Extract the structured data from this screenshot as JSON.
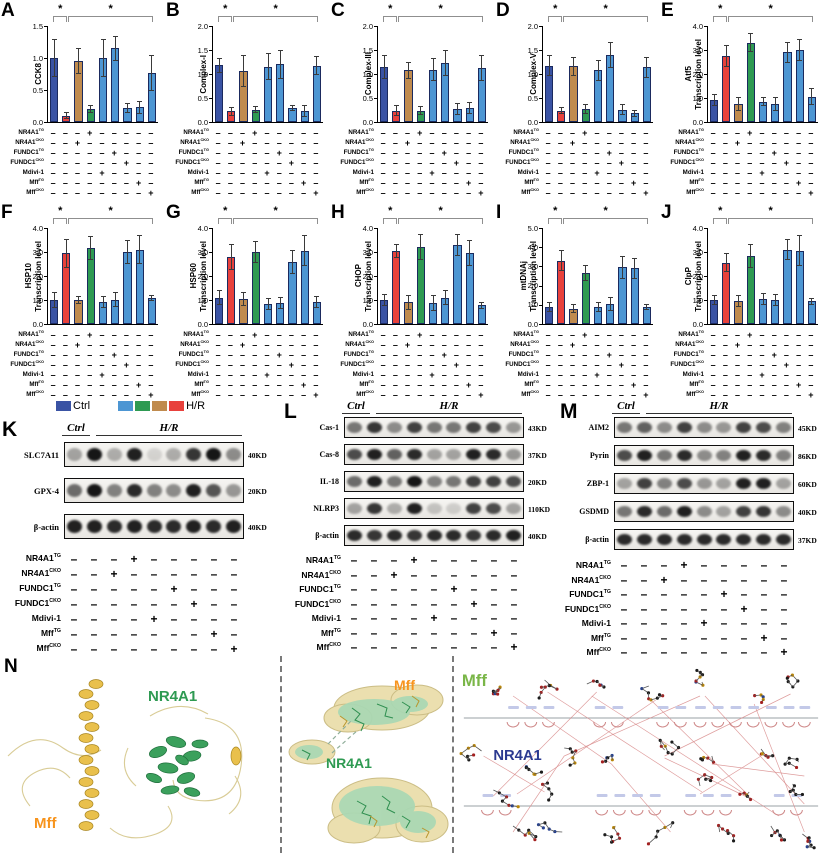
{
  "palette": {
    "ctrl": "#3A53A4",
    "hr": "#E8413C",
    "tan": "#C08B4E",
    "green": "#2E9A52",
    "blue": "#4D96D3",
    "bar_order": [
      "ctrl",
      "hr",
      "tan",
      "green",
      "blue",
      "blue",
      "blue",
      "blue",
      "blue"
    ],
    "legend_hr_order": [
      "blue",
      "green",
      "tan",
      "hr"
    ],
    "axis": "#000000",
    "bracket": "#8f8f8f"
  },
  "legend": {
    "ctrl_label": "Ctrl",
    "hr_label": "H/R"
  },
  "blot_headers": {
    "ctrl": "Ctrl",
    "hr": "H/R"
  },
  "conditions": [
    {
      "base": "NR4A1",
      "sup": "TG",
      "marks": [
        "-",
        "-",
        "-",
        "+",
        "-",
        "-",
        "-",
        "-",
        "-"
      ]
    },
    {
      "base": "NR4A1",
      "sup": "CKO",
      "marks": [
        "-",
        "-",
        "+",
        "-",
        "-",
        "-",
        "-",
        "-",
        "-"
      ]
    },
    {
      "base": "FUNDC1",
      "sup": "TG",
      "marks": [
        "-",
        "-",
        "-",
        "-",
        "-",
        "+",
        "-",
        "-",
        "-"
      ]
    },
    {
      "base": "FUNDC1",
      "sup": "CKO",
      "marks": [
        "-",
        "-",
        "-",
        "-",
        "-",
        "-",
        "+",
        "-",
        "-"
      ]
    },
    {
      "base": "Mdivi-1",
      "sup": "",
      "marks": [
        "-",
        "-",
        "-",
        "-",
        "+",
        "-",
        "-",
        "-",
        "-"
      ]
    },
    {
      "base": "Mff",
      "sup": "TG",
      "marks": [
        "-",
        "-",
        "-",
        "-",
        "-",
        "-",
        "-",
        "+",
        "-"
      ]
    },
    {
      "base": "Mff",
      "sup": "CKO",
      "marks": [
        "-",
        "-",
        "-",
        "-",
        "-",
        "-",
        "-",
        "-",
        "+"
      ]
    }
  ],
  "chart_data": [
    {
      "type": "bar",
      "id": "A",
      "ylabel": "CCK8",
      "ylabel2": "",
      "ymax": 1.5,
      "ystep": 0.5,
      "ylim": [
        0,
        1.5
      ],
      "values": [
        1.0,
        0.1,
        0.95,
        0.2,
        1.0,
        1.15,
        0.22,
        0.23,
        0.77
      ],
      "errors": [
        0.3,
        0.05,
        0.2,
        0.06,
        0.3,
        0.2,
        0.08,
        0.1,
        0.28
      ],
      "sig": [
        "*",
        "*"
      ]
    },
    {
      "type": "bar",
      "id": "B",
      "ylabel": "Complex-I",
      "ylabel2": "",
      "ymax": 2.0,
      "ystep": 0.5,
      "ylim": [
        0,
        2.0
      ],
      "values": [
        1.18,
        0.22,
        1.07,
        0.26,
        1.15,
        1.2,
        0.29,
        0.23,
        1.17
      ],
      "errors": [
        0.15,
        0.1,
        0.33,
        0.08,
        0.28,
        0.3,
        0.07,
        0.12,
        0.2
      ],
      "sig": [
        "*",
        "*"
      ]
    },
    {
      "type": "bar",
      "id": "C",
      "ylabel": "Complex-III",
      "ylabel2": "",
      "ymax": 2.0,
      "ystep": 0.5,
      "ylim": [
        0,
        2.0
      ],
      "values": [
        1.14,
        0.24,
        1.08,
        0.24,
        1.09,
        1.23,
        0.27,
        0.29,
        1.13
      ],
      "errors": [
        0.25,
        0.12,
        0.18,
        0.1,
        0.24,
        0.27,
        0.12,
        0.12,
        0.27
      ],
      "sig": [
        "*",
        "*"
      ]
    },
    {
      "type": "bar",
      "id": "D",
      "ylabel": "Complex-V",
      "ylabel2": "",
      "ymax": 2.0,
      "ystep": 0.5,
      "ylim": [
        0,
        2.0
      ],
      "values": [
        1.17,
        0.24,
        1.16,
        0.27,
        1.08,
        1.39,
        0.26,
        0.18,
        1.14
      ],
      "errors": [
        0.22,
        0.08,
        0.2,
        0.1,
        0.22,
        0.27,
        0.12,
        0.08,
        0.22
      ],
      "sig": [
        "*",
        "*"
      ]
    },
    {
      "type": "bar",
      "id": "E",
      "ylabel": "Atf5",
      "ylabel2": "Transcription level",
      "ymax": 4.0,
      "ystep": 1.0,
      "ylim": [
        0,
        4.0
      ],
      "values": [
        0.9,
        2.75,
        0.75,
        3.3,
        0.85,
        0.75,
        2.9,
        3.0,
        1.05
      ],
      "errors": [
        0.25,
        0.45,
        0.3,
        0.4,
        0.2,
        0.3,
        0.45,
        0.45,
        0.35
      ],
      "sig": [
        "*",
        "*"
      ]
    },
    {
      "type": "bar",
      "id": "F",
      "ylabel": "HSP10",
      "ylabel2": "Transcription level",
      "ymax": 4.0,
      "ystep": 1.0,
      "ylim": [
        0,
        4.0
      ],
      "values": [
        1.0,
        2.95,
        1.0,
        3.15,
        0.92,
        1.02,
        3.0,
        3.1,
        1.1
      ],
      "errors": [
        0.35,
        0.6,
        0.15,
        0.5,
        0.25,
        0.3,
        0.5,
        0.6,
        0.12
      ],
      "sig": [
        "*",
        "*"
      ]
    },
    {
      "type": "bar",
      "id": "G",
      "ylabel": "HSP60",
      "ylabel2": "Transcription level",
      "ymax": 4.0,
      "ystep": 1.0,
      "ylim": [
        0,
        4.0
      ],
      "values": [
        1.1,
        2.8,
        1.05,
        3.0,
        0.85,
        0.87,
        2.6,
        3.05,
        0.92
      ],
      "errors": [
        0.3,
        0.55,
        0.3,
        0.45,
        0.25,
        0.25,
        0.5,
        0.65,
        0.25
      ],
      "sig": [
        "*",
        "*"
      ]
    },
    {
      "type": "bar",
      "id": "H",
      "ylabel": "CHOP",
      "ylabel2": "Transcription level",
      "ymax": 4.0,
      "ystep": 1.0,
      "ylim": [
        0,
        4.0
      ],
      "values": [
        1.0,
        3.05,
        0.9,
        3.2,
        0.88,
        1.1,
        3.3,
        2.95,
        0.78
      ],
      "errors": [
        0.25,
        0.3,
        0.3,
        0.55,
        0.35,
        0.3,
        0.45,
        0.55,
        0.15
      ],
      "sig": [
        "*",
        "*"
      ]
    },
    {
      "type": "bar",
      "id": "I",
      "ylabel": "mtDNAj",
      "ylabel2": "Transcription level",
      "ymax": 5.0,
      "ystep": 1.0,
      "ylim": [
        0,
        5.0
      ],
      "values": [
        0.9,
        3.3,
        0.8,
        2.65,
        0.9,
        1.05,
        2.95,
        2.9,
        0.9
      ],
      "errors": [
        0.25,
        0.55,
        0.25,
        0.4,
        0.25,
        0.35,
        0.6,
        0.55,
        0.15
      ],
      "sig": [
        "*",
        "*"
      ]
    },
    {
      "type": "bar",
      "id": "J",
      "ylabel": "ClpP",
      "ylabel2": "Transcription level",
      "ymax": 4.0,
      "ystep": 1.0,
      "ylim": [
        0,
        4.0
      ],
      "values": [
        1.0,
        2.55,
        0.95,
        2.85,
        1.05,
        1.0,
        3.1,
        3.05,
        0.95
      ],
      "errors": [
        0.2,
        0.4,
        0.25,
        0.5,
        0.25,
        0.25,
        0.45,
        0.65,
        0.15
      ],
      "sig": [
        "*",
        "*"
      ]
    }
  ],
  "blot_panels": [
    {
      "id": "K",
      "rows": [
        {
          "label": "SLC7A11",
          "kd": "40KD",
          "bands": [
            0.35,
            1.0,
            0.3,
            0.95,
            0.12,
            0.3,
            0.85,
            1.0,
            0.45
          ]
        },
        {
          "label": "GPX-4",
          "kd": "20KD",
          "bands": [
            0.6,
            1.0,
            0.5,
            0.9,
            0.5,
            0.45,
            0.95,
            0.7,
            0.4
          ]
        },
        {
          "label": "β-actin",
          "kd": "40KD",
          "bands": [
            0.95,
            0.95,
            0.9,
            0.95,
            0.9,
            0.9,
            0.95,
            0.9,
            0.95
          ]
        }
      ]
    },
    {
      "id": "L",
      "rows": [
        {
          "label": "Cas-1",
          "kd": "43KD",
          "bands": [
            0.55,
            0.85,
            0.45,
            0.8,
            0.55,
            0.55,
            0.8,
            0.75,
            0.4
          ]
        },
        {
          "label": "Cas-8",
          "kd": "37KD",
          "bands": [
            0.75,
            0.95,
            0.65,
            0.9,
            0.35,
            0.35,
            0.95,
            0.9,
            0.4
          ]
        },
        {
          "label": "IL-18",
          "kd": "20KD",
          "bands": [
            0.6,
            0.95,
            0.55,
            1.0,
            0.5,
            0.55,
            0.8,
            0.8,
            0.75
          ]
        },
        {
          "label": "NLRP3",
          "kd": "110KD",
          "bands": [
            0.35,
            0.85,
            0.3,
            0.95,
            0.2,
            0.15,
            0.8,
            0.75,
            0.35
          ]
        },
        {
          "label": "β-actin",
          "kd": "40KD",
          "bands": [
            0.9,
            0.85,
            0.9,
            0.85,
            0.9,
            0.9,
            0.85,
            0.9,
            0.95
          ]
        }
      ]
    },
    {
      "id": "M",
      "rows": [
        {
          "label": "AIM2",
          "kd": "45KD",
          "bands": [
            0.55,
            0.65,
            0.45,
            0.8,
            0.45,
            0.4,
            0.8,
            0.75,
            0.5
          ]
        },
        {
          "label": "Pyrin",
          "kd": "86KD",
          "bands": [
            0.75,
            0.95,
            0.55,
            0.9,
            0.45,
            0.5,
            0.95,
            0.9,
            0.5
          ]
        },
        {
          "label": "ZBP-1",
          "kd": "60KD",
          "bands": [
            0.35,
            0.8,
            0.5,
            0.75,
            0.4,
            0.35,
            0.95,
            0.95,
            0.35
          ]
        },
        {
          "label": "GSDMD",
          "kd": "40KD",
          "bands": [
            0.55,
            0.9,
            0.6,
            0.95,
            0.45,
            0.35,
            0.8,
            0.85,
            0.45
          ]
        },
        {
          "label": "β-actin",
          "kd": "37KD",
          "bands": [
            0.9,
            0.9,
            0.9,
            0.9,
            0.9,
            0.9,
            0.9,
            0.9,
            0.9
          ]
        }
      ]
    }
  ],
  "panel_n": {
    "letter": "N",
    "sub1": {
      "labels": [
        {
          "text": "NR4A1",
          "color": "#2E9A52"
        },
        {
          "text": "Mff",
          "color": "#F7941D"
        }
      ]
    },
    "sub2": {
      "labels": [
        {
          "text": "Mff",
          "color": "#F7941D"
        },
        {
          "text": "NR4A1",
          "color": "#2E9A52"
        }
      ]
    },
    "sub3": {
      "labels": [
        {
          "text": "Mff",
          "color": "#7AB648"
        },
        {
          "text": "NR4A1",
          "color": "#2B3990"
        }
      ]
    }
  }
}
